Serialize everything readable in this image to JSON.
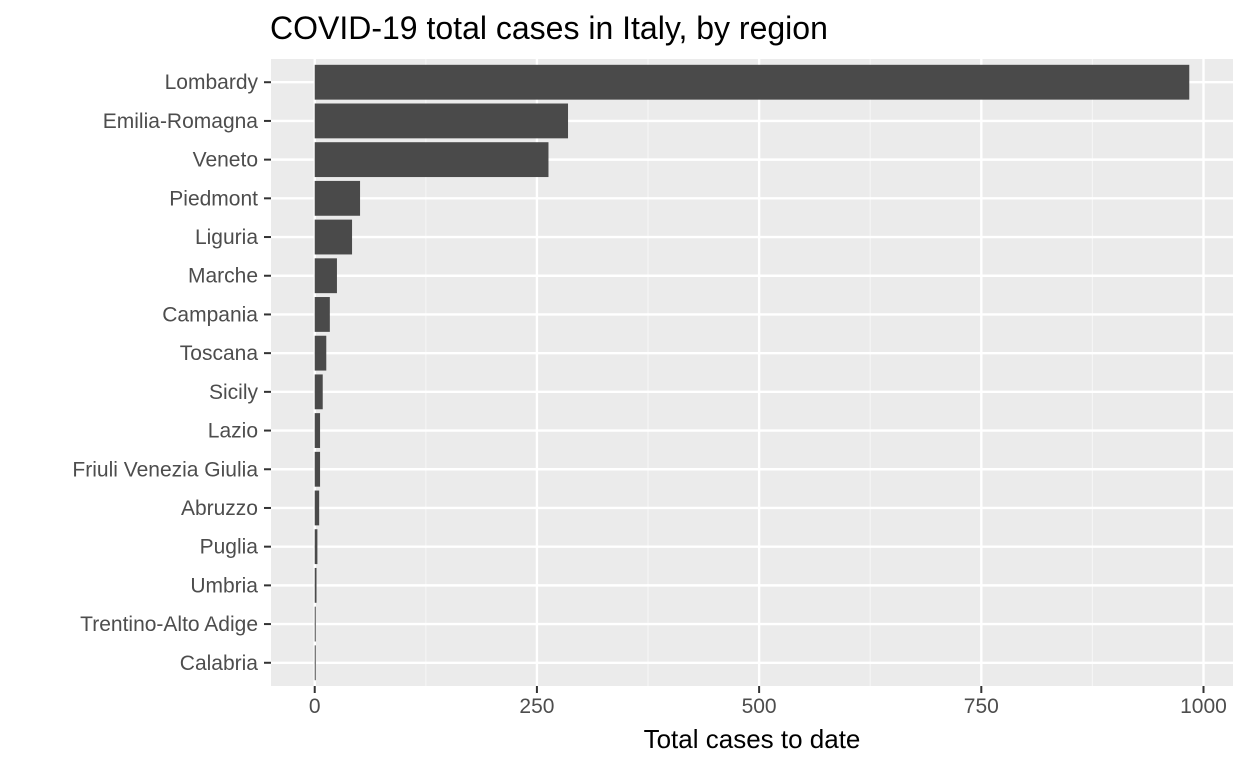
{
  "chart_data": {
    "type": "bar",
    "orientation": "horizontal",
    "title": "COVID-19 total cases in Italy, by region",
    "xlabel": "Total cases to date",
    "ylabel": "",
    "categories": [
      "Lombardy",
      "Emilia-Romagna",
      "Veneto",
      "Piedmont",
      "Liguria",
      "Marche",
      "Campania",
      "Toscana",
      "Sicily",
      "Lazio",
      "Friuli Venezia Giulia",
      "Abruzzo",
      "Puglia",
      "Umbria",
      "Trentino-Alto Adige",
      "Calabria"
    ],
    "values": [
      984,
      285,
      263,
      51,
      42,
      25,
      17,
      13,
      9,
      6,
      6,
      5,
      3,
      2,
      1,
      1
    ],
    "xlim": [
      -49.2,
      1033.2
    ],
    "xticks": [
      0,
      250,
      500,
      750,
      1000
    ],
    "xtick_labels": [
      "0",
      "250",
      "500",
      "750",
      "1000"
    ],
    "grid": true,
    "legend": "none",
    "colors": {
      "panel_background": "#ebebeb",
      "grid_major": "#ffffff",
      "grid_minor": "#f5f5f5",
      "bar_fill": "#4a4a4a",
      "text": "#4d4d4d",
      "title": "#000000"
    }
  }
}
